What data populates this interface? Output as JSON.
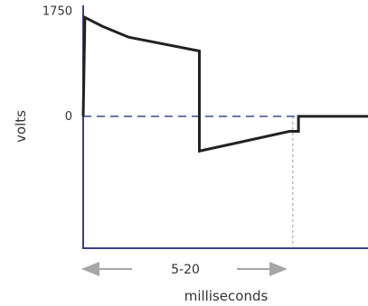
{
  "chart_data": {
    "type": "line",
    "xlabel": "milliseconds",
    "ylabel": "volts",
    "y_ticks": [
      {
        "value": 1750,
        "label": "1750"
      },
      {
        "value": 0,
        "label": "0"
      }
    ],
    "duration_annotation": "5-20",
    "x_range": [
      0,
      100
    ],
    "y_range": [
      -2200,
      1850
    ],
    "series": [
      {
        "points": [
          [
            0,
            0
          ],
          [
            0.6,
            1650
          ],
          [
            6.8,
            1500
          ],
          [
            16,
            1320
          ],
          [
            40.8,
            1090
          ],
          [
            40.8,
            -580
          ],
          [
            72.4,
            -250
          ],
          [
            75.6,
            -250
          ],
          [
            75.6,
            0
          ],
          [
            100,
            0
          ]
        ]
      }
    ],
    "reference_lines": [
      {
        "orientation": "horizontal",
        "y": 0,
        "style": "dashed"
      },
      {
        "orientation": "vertical",
        "x": 73.6,
        "style": "dotted"
      }
    ],
    "colors": {
      "trace": "#222222",
      "axis": "#3b3f7e",
      "zero_line": "#3b4a8a",
      "guide": "#999999",
      "arrow": "#a6a6a6",
      "text": "#333333"
    }
  }
}
